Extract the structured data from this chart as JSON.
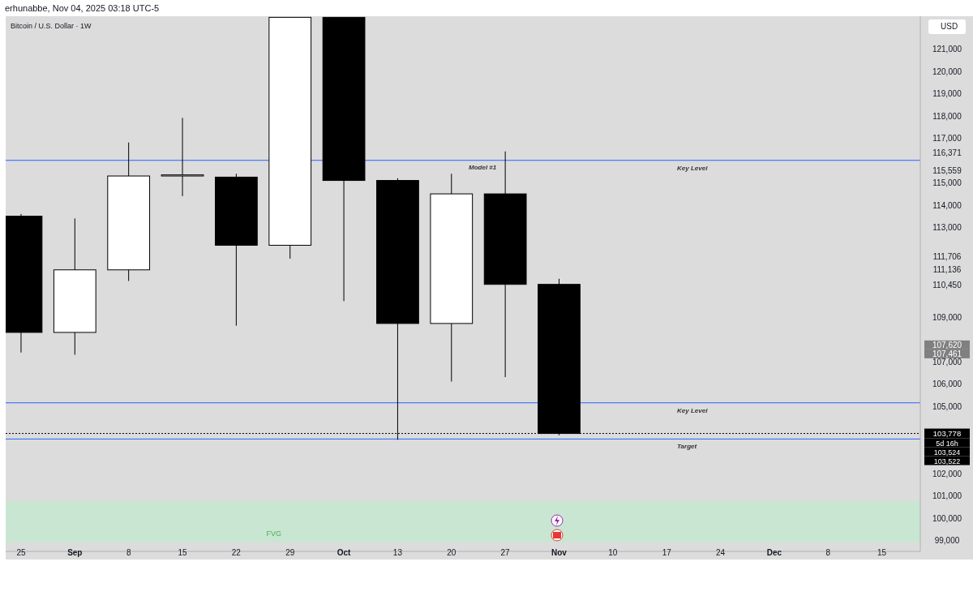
{
  "chart_data": {
    "type": "candlestick",
    "title": "Bitcoin / U.S. Dollar · 1W",
    "subtitle": "erhunabbe, Nov 04, 2025 03:18 UTC-5",
    "ylabel": "USD",
    "x": [
      "2025-08-25",
      "2025-09-01",
      "2025-09-08",
      "2025-09-15",
      "2025-09-22",
      "2025-09-29",
      "2025-10-06",
      "2025-10-13",
      "2025-10-20",
      "2025-10-27",
      "2025-11-03"
    ],
    "ohlc": [
      [
        113500,
        113600,
        107400,
        108300
      ],
      [
        108300,
        113400,
        107300,
        111100
      ],
      [
        111100,
        116800,
        110600,
        115300
      ],
      [
        115300,
        117900,
        114400,
        115350
      ],
      [
        115250,
        115400,
        108600,
        112200
      ],
      [
        112200,
        122400,
        111600,
        122400
      ],
      [
        122400,
        122400,
        109700,
        115100
      ],
      [
        115100,
        115200,
        103500,
        108700
      ],
      [
        108700,
        115400,
        106100,
        114500
      ],
      [
        114500,
        116400,
        106300,
        110450
      ],
      [
        110450,
        110700,
        103700,
        103778
      ]
    ],
    "colors": [
      "#000000",
      "#ffffff",
      "#ffffff",
      "#ffffff",
      "#000000",
      "#ffffff",
      "#000000",
      "#000000",
      "#ffffff",
      "#000000",
      "#000000"
    ],
    "xlim": [
      "2025-08-23",
      "2025-12-20"
    ],
    "xticks": [
      {
        "value": "2025-08-25",
        "label": "25"
      },
      {
        "value": "2025-09-01",
        "label": "Sep"
      },
      {
        "value": "2025-09-08",
        "label": "8"
      },
      {
        "value": "2025-09-15",
        "label": "15"
      },
      {
        "value": "2025-09-22",
        "label": "22"
      },
      {
        "value": "2025-09-29",
        "label": "29"
      },
      {
        "value": "2025-10-06",
        "label": "Oct"
      },
      {
        "value": "2025-10-13",
        "label": "13"
      },
      {
        "value": "2025-10-20",
        "label": "20"
      },
      {
        "value": "2025-10-27",
        "label": "27"
      },
      {
        "value": "2025-11-03",
        "label": "Nov"
      },
      {
        "value": "2025-11-10",
        "label": "10"
      },
      {
        "value": "2025-11-17",
        "label": "17"
      },
      {
        "value": "2025-11-24",
        "label": "24"
      },
      {
        "value": "2025-12-01",
        "label": "Dec"
      },
      {
        "value": "2025-12-08",
        "label": "8"
      },
      {
        "value": "2025-12-15",
        "label": "15"
      }
    ],
    "ylim": [
      98500,
      122450
    ],
    "yticks": [
      {
        "value": 99000,
        "label": "99,000"
      },
      {
        "value": 100000,
        "label": "100,000"
      },
      {
        "value": 101000,
        "label": "101,000"
      },
      {
        "value": 102000,
        "label": "102,000"
      },
      {
        "value": 107461,
        "label": "107,461"
      },
      {
        "value": 107620,
        "label": "107,620"
      },
      {
        "value": 110450,
        "label": "110,450"
      },
      {
        "value": 111136,
        "label": "111,136"
      },
      {
        "value": 111706,
        "label": "111,706"
      },
      {
        "value": 115559,
        "label": "115,559"
      },
      {
        "value": 116371,
        "label": "116,371"
      },
      {
        "value": 105000,
        "label": "105,000"
      },
      {
        "value": 106000,
        "label": "106,000"
      },
      {
        "value": 107000,
        "label": "107,000"
      },
      {
        "value": 109000,
        "label": "109,000"
      },
      {
        "value": 113000,
        "label": "113,000"
      },
      {
        "value": 114000,
        "label": "114,000"
      },
      {
        "value": 115000,
        "label": "115,000"
      },
      {
        "value": 117000,
        "label": "117,000"
      },
      {
        "value": 118000,
        "label": "118,000"
      },
      {
        "value": 119000,
        "label": "119,000"
      },
      {
        "value": 120000,
        "label": "120,000"
      },
      {
        "value": 121000,
        "label": "121,000"
      }
    ],
    "grid": false,
    "ref_lines": [
      {
        "axis": "y",
        "value": 116000,
        "label": "Key Level",
        "color": "#2962ff"
      },
      {
        "axis": "y",
        "value": 105150,
        "label": "Key Level",
        "color": "#2962ff"
      },
      {
        "axis": "y",
        "value": 103530,
        "label": "Target",
        "color": "#2962ff"
      },
      {
        "axis": "y",
        "value": 103778,
        "label": "103,778",
        "color": "#000000",
        "line_style": "dotted"
      }
    ],
    "bands": [
      {
        "axis": "y",
        "from": 98900,
        "to": 100750,
        "label": "FVG",
        "color": "#c8e6d2"
      }
    ],
    "annotations": [
      {
        "text": "Model #1",
        "x": "2025-10-27",
        "y": 115600
      },
      "5d 16h",
      "103,524",
      "103,522"
    ]
  }
}
